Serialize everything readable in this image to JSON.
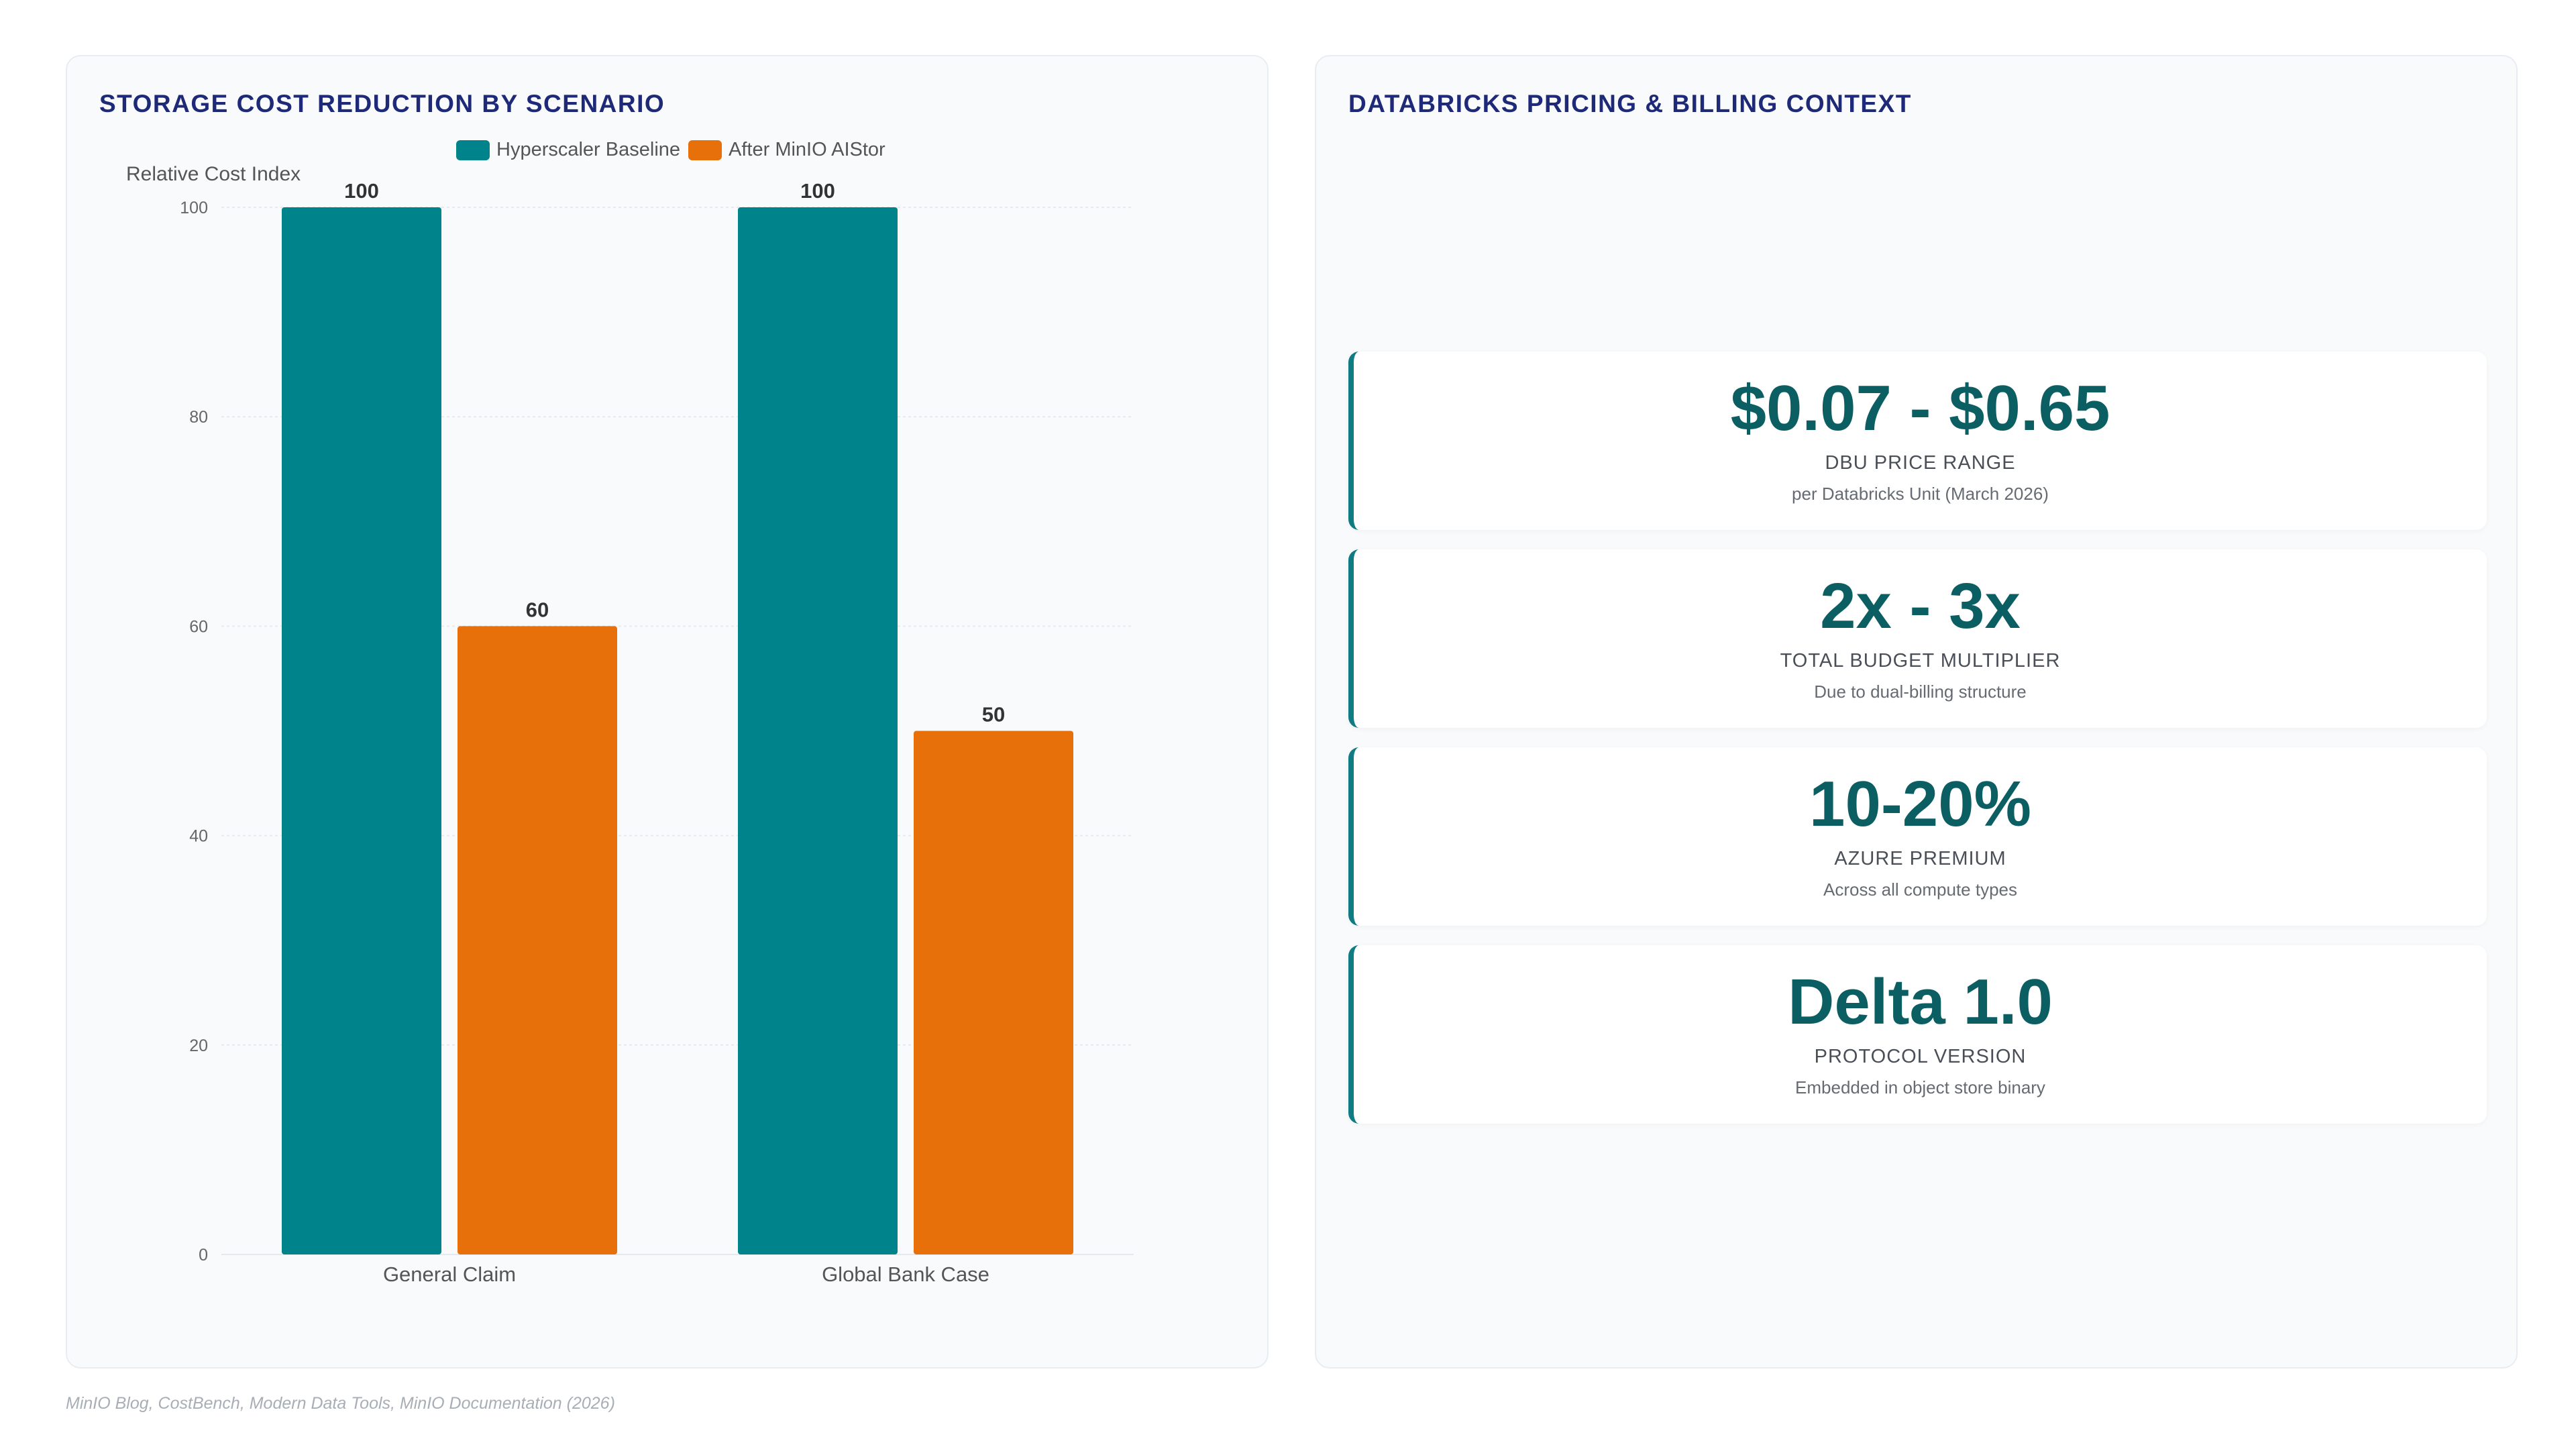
{
  "left_panel": {
    "title": "STORAGE COST REDUCTION BY SCENARIO"
  },
  "right_panel": {
    "title": "DATABRICKS PRICING & BILLING CONTEXT",
    "metrics": [
      {
        "value": "$0.07 - $0.65",
        "label": "DBU PRICE RANGE",
        "sub": "per Databricks Unit (March 2026)"
      },
      {
        "value": "2x - 3x",
        "label": "TOTAL BUDGET MULTIPLIER",
        "sub": "Due to dual-billing structure"
      },
      {
        "value": "10-20%",
        "label": "AZURE PREMIUM",
        "sub": "Across all compute types"
      },
      {
        "value": "Delta 1.0",
        "label": "PROTOCOL VERSION",
        "sub": "Embedded in object store binary"
      }
    ]
  },
  "footer": "MinIO Blog, CostBench, Modern Data Tools, MinIO Documentation (2026)",
  "colors": {
    "teal": "#00838b",
    "orange": "#e8700a",
    "accent": "#0f7b82"
  },
  "chart_data": {
    "type": "bar",
    "title": "STORAGE COST REDUCTION BY SCENARIO",
    "ylabel": "Relative Cost Index",
    "xlabel": "",
    "categories": [
      "General Claim",
      "Global Bank Case"
    ],
    "series": [
      {
        "name": "Hyperscaler Baseline",
        "values": [
          100,
          100
        ],
        "color": "#00838b"
      },
      {
        "name": "After MinIO AIStor",
        "values": [
          60,
          50
        ],
        "color": "#e8700a"
      }
    ],
    "ylim": [
      0,
      100
    ],
    "yticks": [
      0,
      20,
      40,
      60,
      80,
      100
    ],
    "grid": true,
    "legend": "top"
  }
}
